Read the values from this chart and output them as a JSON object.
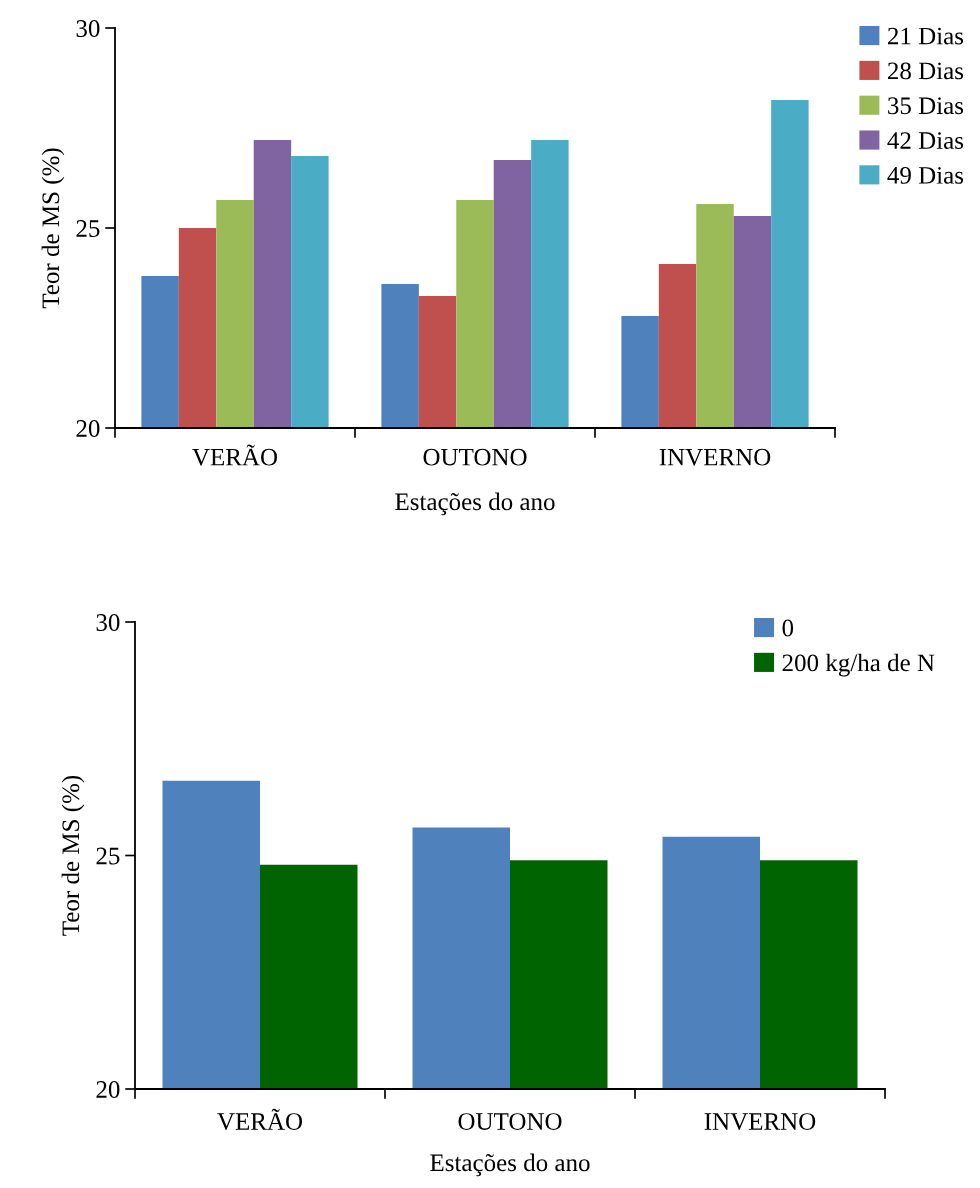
{
  "chart_data": [
    {
      "type": "bar",
      "xlabel": "Estações do ano",
      "ylabel": "Teor de MS (%)",
      "categories": [
        "VERÃO",
        "OUTONO",
        "INVERNO"
      ],
      "ylim": [
        20,
        30
      ],
      "yticks": [
        20,
        25,
        30
      ],
      "legend": "right",
      "grid": false,
      "series": [
        {
          "name": "21 Dias",
          "color": "#4f81bd",
          "values": [
            23.8,
            23.6,
            22.8
          ]
        },
        {
          "name": "28 Dias",
          "color": "#c0504d",
          "values": [
            25.0,
            23.3,
            24.1
          ]
        },
        {
          "name": "35 Dias",
          "color": "#9bbb59",
          "values": [
            25.7,
            25.7,
            25.6
          ]
        },
        {
          "name": "42 Dias",
          "color": "#8064a2",
          "values": [
            27.2,
            26.7,
            25.3
          ]
        },
        {
          "name": "49 Dias",
          "color": "#4bacc6",
          "values": [
            26.8,
            27.2,
            28.2
          ]
        }
      ]
    },
    {
      "type": "bar",
      "xlabel": "Estações do ano",
      "ylabel": "Teor de MS (%)",
      "categories": [
        "VERÃO",
        "OUTONO",
        "INVERNO"
      ],
      "ylim": [
        20,
        30
      ],
      "yticks": [
        20,
        25,
        30
      ],
      "legend": "top right",
      "grid": false,
      "series": [
        {
          "name": "0",
          "color": "#4f81bd",
          "values": [
            26.6,
            25.6,
            25.4
          ]
        },
        {
          "name": "200 kg/ha de N",
          "color": "#006400",
          "values": [
            24.8,
            24.9,
            24.9
          ]
        }
      ]
    }
  ]
}
